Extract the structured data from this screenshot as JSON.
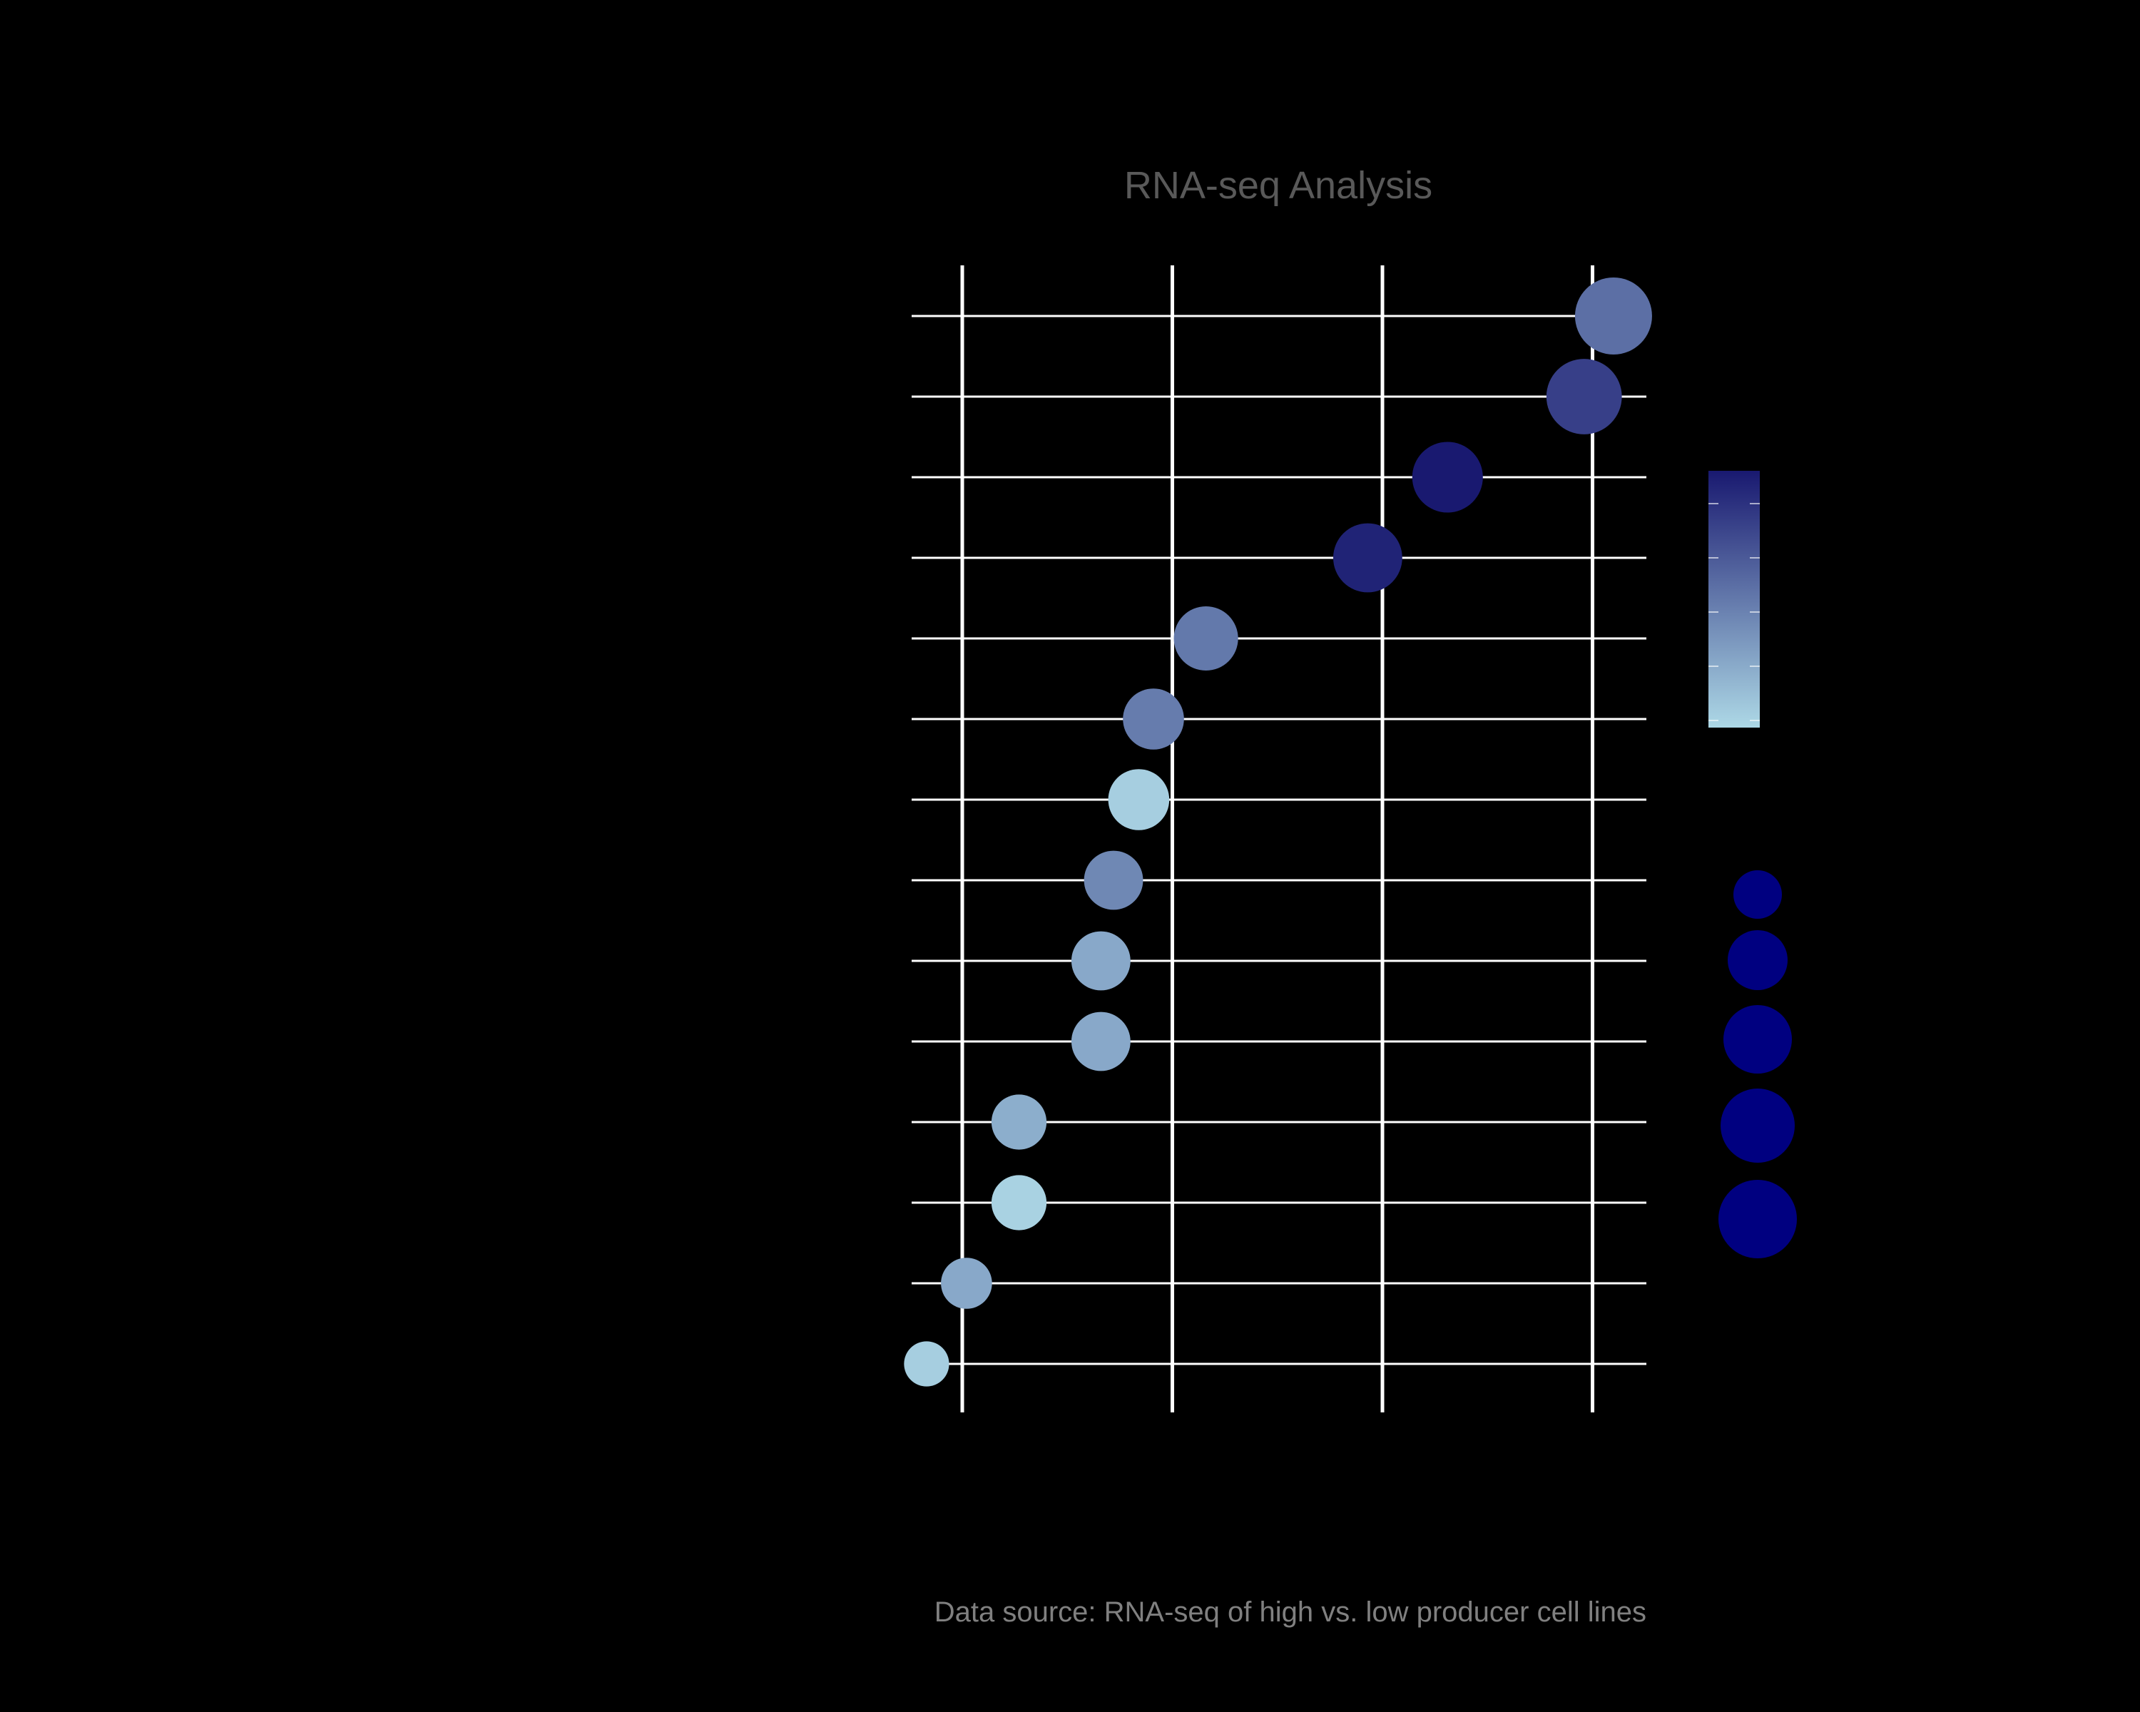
{
  "chart_data": {
    "type": "scatter",
    "title": "RNA-seq Analysis",
    "caption": "Data source: RNA-seq of high vs. low producer cell lines",
    "xlabel": "",
    "ylabel": "",
    "grid": true,
    "background": "#000000",
    "grid_color": "#ffffff",
    "color_scale": {
      "low": "#add8e6",
      "high": "#191970",
      "label": ""
    },
    "size_legend": {
      "label": "",
      "steps": 5,
      "color": "#000080"
    },
    "x_gridlines": [
      0,
      1,
      2,
      3
    ],
    "xlim": [
      -0.24,
      3.24
    ],
    "points": [
      {
        "rank": 1,
        "x": 3.1,
        "size": 1.0,
        "color_level": 0.55
      },
      {
        "rank": 2,
        "x": 2.96,
        "size": 0.96,
        "color_level": 0.8
      },
      {
        "rank": 3,
        "x": 2.31,
        "size": 0.84,
        "color_level": 1.0
      },
      {
        "rank": 4,
        "x": 1.93,
        "size": 0.8,
        "color_level": 0.95
      },
      {
        "rank": 5,
        "x": 1.16,
        "size": 0.68,
        "color_level": 0.5
      },
      {
        "rank": 6,
        "x": 0.91,
        "size": 0.6,
        "color_level": 0.48
      },
      {
        "rank": 7,
        "x": 0.84,
        "size": 0.6,
        "color_level": 0.05
      },
      {
        "rank": 8,
        "x": 0.72,
        "size": 0.55,
        "color_level": 0.42
      },
      {
        "rank": 9,
        "x": 0.66,
        "size": 0.55,
        "color_level": 0.25
      },
      {
        "rank": 10,
        "x": 0.66,
        "size": 0.55,
        "color_level": 0.25
      },
      {
        "rank": 11,
        "x": 0.27,
        "size": 0.45,
        "color_level": 0.22
      },
      {
        "rank": 12,
        "x": 0.27,
        "size": 0.45,
        "color_level": 0.03
      },
      {
        "rank": 13,
        "x": 0.02,
        "size": 0.35,
        "color_level": 0.25
      },
      {
        "rank": 14,
        "x": -0.17,
        "size": 0.2,
        "color_level": 0.05
      }
    ]
  }
}
